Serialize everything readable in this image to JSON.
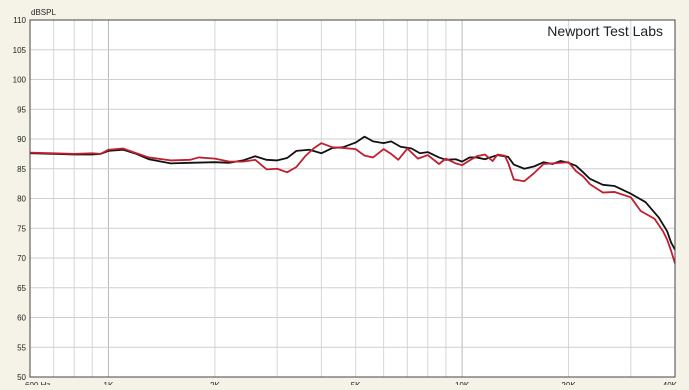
{
  "chart_data": {
    "type": "line",
    "watermark": "Newport Test Labs",
    "ylabel": "dBSPL",
    "xscale": "log",
    "xlim": [
      600,
      40000
    ],
    "ylim": [
      50,
      110
    ],
    "grid": true,
    "y_ticks": [
      50,
      55,
      60,
      65,
      70,
      75,
      80,
      85,
      90,
      95,
      100,
      105,
      110
    ],
    "x_ticks": [
      {
        "value": 600,
        "label": "600 Hz"
      },
      {
        "value": 1000,
        "label": "1K"
      },
      {
        "value": 2000,
        "label": "2K"
      },
      {
        "value": 5000,
        "label": "5K"
      },
      {
        "value": 10000,
        "label": "10K"
      },
      {
        "value": 20000,
        "label": "20K"
      },
      {
        "value": 40000,
        "label": "40K"
      }
    ],
    "series": [
      {
        "color": "#111111",
        "points": [
          [
            600,
            87.6
          ],
          [
            700,
            87.5
          ],
          [
            800,
            87.4
          ],
          [
            900,
            87.4
          ],
          [
            950,
            87.5
          ],
          [
            1000,
            88.0
          ],
          [
            1100,
            88.2
          ],
          [
            1200,
            87.5
          ],
          [
            1300,
            86.6
          ],
          [
            1500,
            85.9
          ],
          [
            1700,
            86.0
          ],
          [
            2000,
            86.1
          ],
          [
            2200,
            86.0
          ],
          [
            2400,
            86.4
          ],
          [
            2600,
            87.1
          ],
          [
            2800,
            86.5
          ],
          [
            3000,
            86.4
          ],
          [
            3200,
            86.8
          ],
          [
            3400,
            88.0
          ],
          [
            3700,
            88.2
          ],
          [
            4000,
            87.6
          ],
          [
            4300,
            88.5
          ],
          [
            4600,
            88.6
          ],
          [
            5000,
            89.4
          ],
          [
            5300,
            90.4
          ],
          [
            5600,
            89.6
          ],
          [
            6000,
            89.3
          ],
          [
            6300,
            89.6
          ],
          [
            6700,
            88.7
          ],
          [
            7200,
            88.4
          ],
          [
            7600,
            87.6
          ],
          [
            8000,
            87.8
          ],
          [
            8600,
            86.9
          ],
          [
            9000,
            86.5
          ],
          [
            9600,
            86.6
          ],
          [
            10000,
            86.2
          ],
          [
            10500,
            86.9
          ],
          [
            11000,
            86.9
          ],
          [
            11600,
            86.6
          ],
          [
            12000,
            86.9
          ],
          [
            12600,
            87.3
          ],
          [
            13500,
            87.0
          ],
          [
            14000,
            85.7
          ],
          [
            15000,
            85.0
          ],
          [
            16000,
            85.4
          ],
          [
            17000,
            86.1
          ],
          [
            18000,
            85.8
          ],
          [
            19000,
            86.3
          ],
          [
            20000,
            86.0
          ],
          [
            21000,
            85.5
          ],
          [
            22000,
            84.4
          ],
          [
            23000,
            83.3
          ],
          [
            25000,
            82.3
          ],
          [
            27000,
            82.1
          ],
          [
            30000,
            80.8
          ],
          [
            33000,
            79.4
          ],
          [
            36000,
            76.8
          ],
          [
            38000,
            74.5
          ],
          [
            39000,
            72.6
          ],
          [
            40000,
            71.4
          ]
        ]
      },
      {
        "color": "#c01f2f",
        "points": [
          [
            600,
            87.7
          ],
          [
            700,
            87.6
          ],
          [
            800,
            87.5
          ],
          [
            900,
            87.6
          ],
          [
            950,
            87.5
          ],
          [
            1000,
            88.2
          ],
          [
            1100,
            88.4
          ],
          [
            1200,
            87.6
          ],
          [
            1300,
            86.9
          ],
          [
            1500,
            86.4
          ],
          [
            1700,
            86.5
          ],
          [
            1800,
            86.9
          ],
          [
            2000,
            86.7
          ],
          [
            2200,
            86.2
          ],
          [
            2400,
            86.2
          ],
          [
            2600,
            86.5
          ],
          [
            2800,
            84.9
          ],
          [
            3000,
            85.0
          ],
          [
            3200,
            84.4
          ],
          [
            3400,
            85.3
          ],
          [
            3600,
            87.1
          ],
          [
            3800,
            88.4
          ],
          [
            4000,
            89.3
          ],
          [
            4300,
            88.6
          ],
          [
            4600,
            88.5
          ],
          [
            5000,
            88.3
          ],
          [
            5300,
            87.2
          ],
          [
            5600,
            86.9
          ],
          [
            6000,
            88.3
          ],
          [
            6300,
            87.5
          ],
          [
            6600,
            86.5
          ],
          [
            7000,
            88.4
          ],
          [
            7500,
            86.7
          ],
          [
            8000,
            87.3
          ],
          [
            8600,
            85.8
          ],
          [
            9000,
            86.7
          ],
          [
            9600,
            85.9
          ],
          [
            10000,
            85.6
          ],
          [
            10500,
            86.4
          ],
          [
            11000,
            87.1
          ],
          [
            11600,
            87.4
          ],
          [
            12200,
            86.3
          ],
          [
            12600,
            87.4
          ],
          [
            13200,
            87.2
          ],
          [
            13500,
            86.0
          ],
          [
            14000,
            83.2
          ],
          [
            15000,
            82.9
          ],
          [
            16000,
            84.3
          ],
          [
            17000,
            85.8
          ],
          [
            18000,
            85.9
          ],
          [
            20000,
            86.1
          ],
          [
            21000,
            84.6
          ],
          [
            22000,
            83.7
          ],
          [
            23000,
            82.4
          ],
          [
            25000,
            81.0
          ],
          [
            27000,
            81.1
          ],
          [
            30000,
            80.2
          ],
          [
            32000,
            77.9
          ],
          [
            35000,
            76.6
          ],
          [
            37000,
            74.5
          ],
          [
            38000,
            73.1
          ],
          [
            39000,
            71.2
          ],
          [
            40000,
            69.1
          ]
        ]
      }
    ]
  }
}
